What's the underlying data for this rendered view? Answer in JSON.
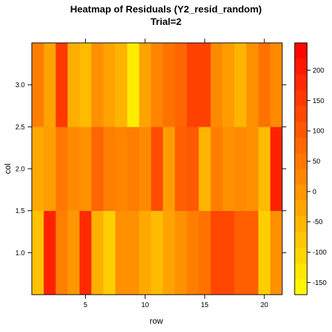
{
  "chart_data": {
    "type": "heatmap",
    "title": "Heatmap of Residuals (Y2_resid_random)",
    "subtitle": "Trial=2",
    "xlabel": "row",
    "ylabel": "col",
    "x_categories": [
      1,
      2,
      3,
      4,
      5,
      6,
      7,
      8,
      9,
      10,
      11,
      12,
      13,
      14,
      15,
      16,
      17,
      18,
      19,
      20,
      21
    ],
    "y_categories": [
      1,
      2,
      3
    ],
    "xlim": [
      0.5,
      21.5
    ],
    "ylim": [
      0.5,
      3.5
    ],
    "x_ticks": [
      5,
      10,
      15,
      20
    ],
    "x_tick_labels": [
      "5",
      "10",
      "15",
      "20"
    ],
    "y_ticks": [
      1.0,
      1.5,
      2.0,
      2.5,
      3.0
    ],
    "y_tick_labels": [
      "1.0",
      "1.5",
      "2.0",
      "2.5",
      "3.0"
    ],
    "values": [
      [
        -70,
        190,
        40,
        0,
        175,
        -40,
        -90,
        10,
        10,
        -30,
        -60,
        -20,
        10,
        40,
        60,
        130,
        130,
        90,
        90,
        -90,
        10
      ],
      [
        -30,
        -10,
        50,
        20,
        10,
        80,
        40,
        30,
        40,
        20,
        120,
        -10,
        90,
        100,
        -50,
        40,
        10,
        20,
        10,
        -60,
        190
      ],
      [
        40,
        -20,
        150,
        -40,
        -60,
        10,
        -20,
        -50,
        -140,
        -20,
        30,
        60,
        80,
        140,
        140,
        20,
        -10,
        -50,
        10,
        60,
        20
      ]
    ],
    "colorbar": {
      "range": [
        -170,
        245
      ],
      "ticks": [
        -150,
        -100,
        -50,
        0,
        50,
        100,
        150,
        200
      ],
      "tick_labels": [
        "-150",
        "-100",
        "-50",
        "0",
        "50",
        "100",
        "150",
        "200"
      ],
      "low_color": "#FFFF00",
      "high_color": "#FF0000"
    },
    "grid": false
  }
}
